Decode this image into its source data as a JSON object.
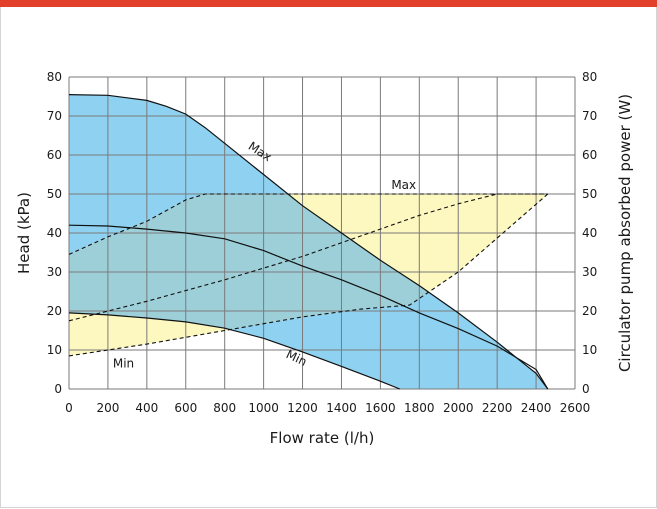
{
  "chart_data": {
    "type": "area",
    "xlabel": "Flow rate (l/h)",
    "ylabel": "Head (kPa)",
    "y2label": "Circulator pump absorbed power (W)",
    "xlim": [
      0,
      2600
    ],
    "ylim": [
      0,
      80
    ],
    "y2lim": [
      0,
      80
    ],
    "xticks": [
      0,
      200,
      400,
      600,
      800,
      1000,
      1200,
      1400,
      1600,
      1800,
      2000,
      2200,
      2400,
      2600
    ],
    "yticks": [
      0,
      10,
      20,
      30,
      40,
      50,
      60,
      70,
      80
    ],
    "y2ticks": [
      0,
      10,
      20,
      30,
      40,
      50,
      60,
      70,
      80
    ],
    "grid": true,
    "colors": {
      "head_area": "#8fd1f0",
      "power_area": "#fdf7c0",
      "overlap": "#9dcfd9",
      "lines": "#111111",
      "accent": "#e3402b"
    },
    "head_curves": [
      {
        "name": "Max",
        "x": [
          0,
          200,
          400,
          500,
          600,
          700,
          800,
          1000,
          1200,
          1400,
          1600,
          1800,
          2000,
          2200,
          2300,
          2400,
          2460
        ],
        "y": [
          75.5,
          75.3,
          74,
          72.5,
          70.5,
          67,
          63,
          55,
          47,
          40,
          33,
          26.5,
          19.5,
          12,
          8,
          4,
          0
        ]
      },
      {
        "name": "",
        "x": [
          0,
          200,
          400,
          600,
          800,
          1000,
          1200,
          1400,
          1600,
          1800,
          2000,
          2200,
          2400,
          2460
        ],
        "y": [
          42,
          41.8,
          41,
          40,
          38.5,
          35.5,
          31.5,
          28,
          24,
          19.5,
          15.5,
          11,
          5,
          0
        ]
      },
      {
        "name": "Min",
        "x": [
          0,
          200,
          400,
          600,
          800,
          1000,
          1200,
          1400,
          1600,
          1700
        ],
        "y": [
          19.5,
          19,
          18.2,
          17.2,
          15.6,
          13,
          9.5,
          5.8,
          2,
          0
        ]
      }
    ],
    "power_curves": [
      {
        "name": "Max",
        "x": [
          0,
          200,
          400,
          600,
          700,
          1000,
          1500,
          2000,
          2460
        ],
        "y": [
          34.5,
          39,
          43,
          48.5,
          50,
          50,
          50,
          50,
          50
        ]
      },
      {
        "name": "",
        "x": [
          0,
          400,
          800,
          1200,
          1600,
          1800,
          2000,
          2200,
          2460
        ],
        "y": [
          17.5,
          22.5,
          28,
          34,
          41,
          44.5,
          47.5,
          50,
          50
        ]
      },
      {
        "name": "Min",
        "x": [
          0,
          400,
          800,
          1200,
          1500,
          1750,
          2000,
          2460
        ],
        "y": [
          8.5,
          11.5,
          15,
          18.5,
          20.5,
          21.5,
          30,
          50
        ]
      }
    ],
    "annotations": [
      {
        "text": "Max",
        "x": 970,
        "y": 60,
        "rotate": 33
      },
      {
        "text": "Max",
        "x": 1720,
        "y": 51.3,
        "rotate": 0
      },
      {
        "text": "Min",
        "x": 280,
        "y": 5.5,
        "rotate": 0
      },
      {
        "text": "Min",
        "x": 1160,
        "y": 7,
        "rotate": 25
      }
    ]
  }
}
